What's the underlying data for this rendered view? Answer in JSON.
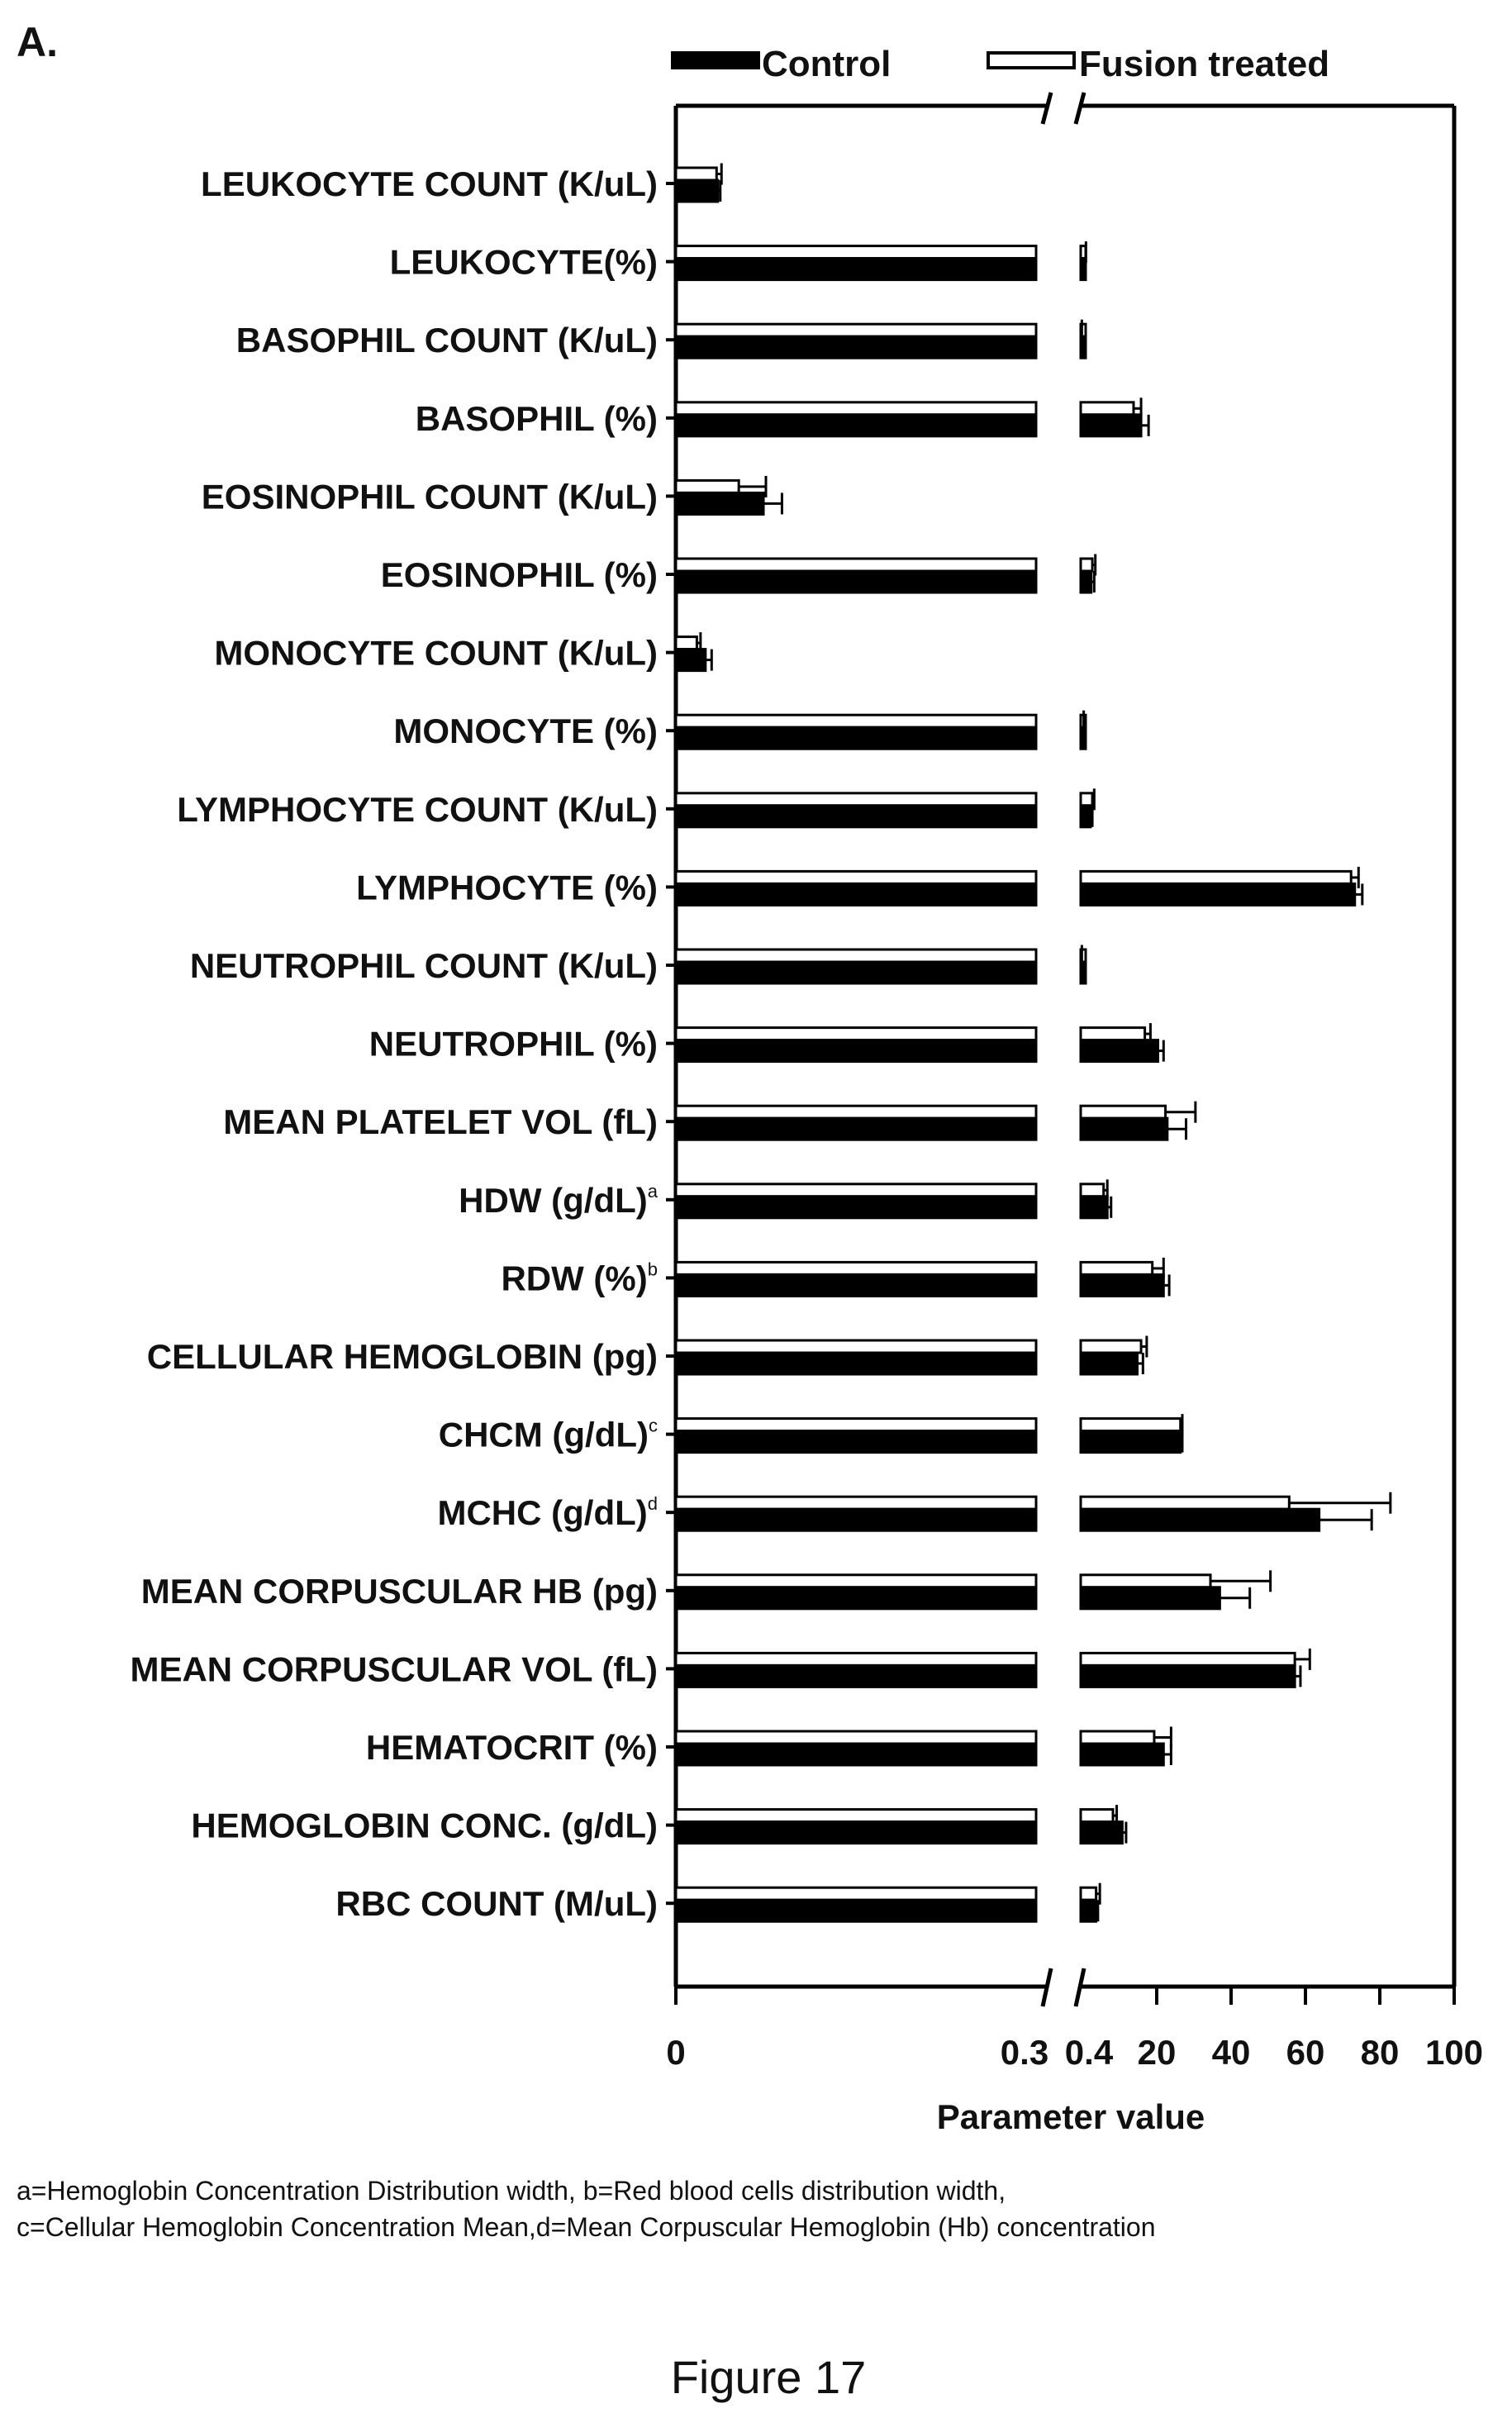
{
  "panel_label": "A.",
  "figure_caption": "Figure 17",
  "footnotes": [
    "a=Hemoglobin Concentration Distribution width, b=Red blood cells distribution width,",
    "c=Cellular Hemoglobin Concentration Mean,d=Mean Corpuscular Hemoglobin (Hb) concentration"
  ],
  "colors": {
    "control": "#000000",
    "fusion": "#ffffff",
    "outline": "#000000"
  },
  "chart_data": {
    "type": "bar",
    "orientation": "horizontal",
    "xlabel": "Parameter value",
    "axis_break": {
      "low_segment": [
        0,
        0.3
      ],
      "high_segment": [
        0.4,
        100
      ]
    },
    "xticks": [
      "0",
      "0.3",
      "0.4",
      "20",
      "40",
      "60",
      "80",
      "100"
    ],
    "legend": {
      "placement": "top",
      "entries": [
        "Control",
        "Fusion treated"
      ]
    },
    "categories": [
      {
        "label": "LEUKOCYTE COUNT (K/uL)",
        "sup": ""
      },
      {
        "label": "LEUKOCYTE(%)",
        "sup": ""
      },
      {
        "label": "BASOPHIL COUNT (K/uL)",
        "sup": ""
      },
      {
        "label": "BASOPHIL (%)",
        "sup": ""
      },
      {
        "label": "EOSINOPHIL COUNT (K/uL)",
        "sup": ""
      },
      {
        "label": "EOSINOPHIL (%)",
        "sup": ""
      },
      {
        "label": "MONOCYTE COUNT (K/uL)",
        "sup": ""
      },
      {
        "label": "MONOCYTE (%)",
        "sup": ""
      },
      {
        "label": "LYMPHOCYTE COUNT (K/uL)",
        "sup": ""
      },
      {
        "label": "LYMPHOCYTE (%)",
        "sup": ""
      },
      {
        "label": "NEUTROPHIL COUNT (K/uL)",
        "sup": ""
      },
      {
        "label": "NEUTROPHIL (%)",
        "sup": ""
      },
      {
        "label": "MEAN PLATELET VOL (fL)",
        "sup": ""
      },
      {
        "label": "HDW (g/dL)",
        "sup": "a"
      },
      {
        "label": "RDW (%)",
        "sup": "b"
      },
      {
        "label": "CELLULAR HEMOGLOBIN (pg)",
        "sup": ""
      },
      {
        "label": "CHCM (g/dL)",
        "sup": "c"
      },
      {
        "label": "MCHC (g/dL)",
        "sup": "d"
      },
      {
        "label": "MEAN CORPUSCULAR HB (pg)",
        "sup": ""
      },
      {
        "label": "MEAN CORPUSCULAR VOL (fL)",
        "sup": ""
      },
      {
        "label": "HEMATOCRIT (%)",
        "sup": ""
      },
      {
        "label": "HEMOGLOBIN CONC. (g/dL)",
        "sup": ""
      },
      {
        "label": "RBC COUNT (M/uL)",
        "sup": ""
      }
    ],
    "series": [
      {
        "name": "Control",
        "values": [
          0.034,
          1.3,
          0.5,
          16.5,
          0.071,
          3.2,
          0.024,
          0.9,
          3.0,
          73.5,
          0.55,
          21.0,
          23.5,
          7.5,
          22.5,
          15.5,
          27.0,
          64.0,
          37.5,
          57.5,
          22.5,
          11.5,
          4.5
        ],
        "errors": [
          0.002,
          0.3,
          0.1,
          2.0,
          0.015,
          0.8,
          0.005,
          0.2,
          0.5,
          2.0,
          0.1,
          1.5,
          5.0,
          1.0,
          1.5,
          1.5,
          0.5,
          14.0,
          8.0,
          1.5,
          2.0,
          1.0,
          0.5
        ]
      },
      {
        "name": "Fusion treated",
        "values": [
          0.033,
          1.5,
          0.6,
          14.5,
          0.051,
          3.5,
          0.017,
          1.0,
          3.5,
          72.5,
          0.6,
          17.5,
          23.0,
          6.5,
          19.5,
          16.5,
          27.0,
          56.0,
          35.0,
          57.5,
          20.0,
          9.0,
          4.5
        ],
        "errors": [
          0.004,
          0.3,
          0.1,
          2.0,
          0.022,
          0.8,
          0.003,
          0.2,
          0.5,
          2.0,
          0.1,
          1.5,
          8.0,
          1.0,
          3.0,
          1.5,
          0.5,
          27.0,
          16.0,
          4.0,
          4.5,
          1.0,
          1.0
        ]
      }
    ]
  }
}
